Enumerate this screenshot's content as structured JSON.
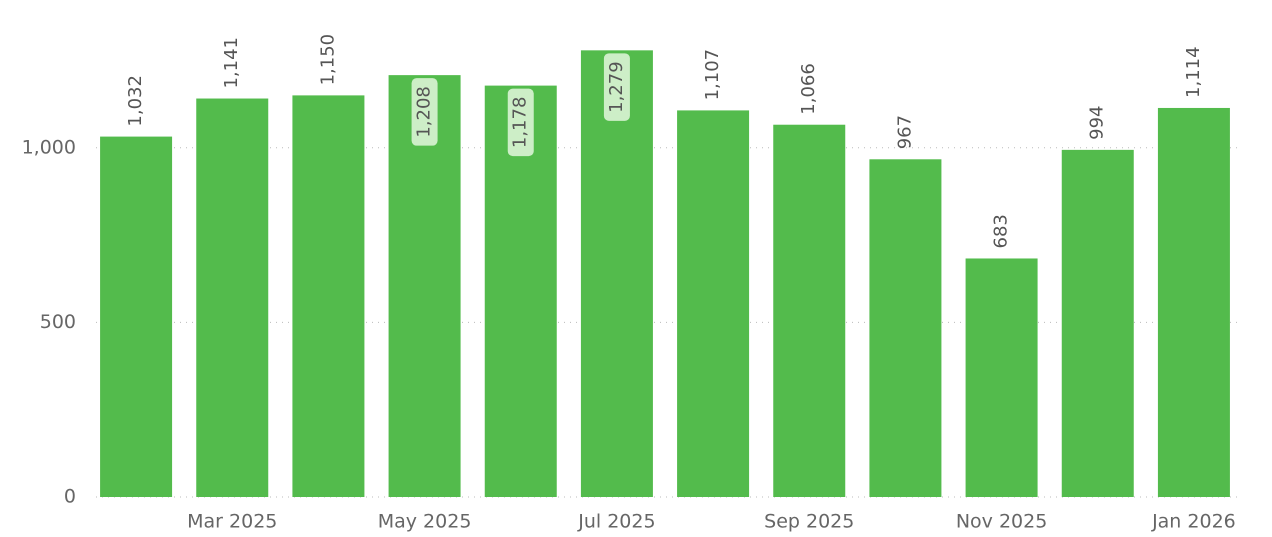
{
  "chart_data": {
    "type": "bar",
    "categories": [
      null,
      "Mar 2025",
      null,
      "May 2025",
      null,
      "Jul 2025",
      null,
      "Sep 2025",
      null,
      "Nov 2025",
      null,
      "Jan 2026"
    ],
    "values": [
      1032,
      1141,
      1150,
      1208,
      1178,
      1279,
      1107,
      1066,
      967,
      683,
      994,
      1114
    ],
    "value_labels": [
      "1,032",
      "1,141",
      "1,150",
      "1,208",
      "1,178",
      "1,279",
      "1,107",
      "1,066",
      "967",
      "683",
      "994",
      "1,114"
    ],
    "color": "#53bb4c",
    "ylim": [
      0,
      1300
    ],
    "yticks": [
      0,
      500,
      {
        "value": 1000,
        "label": "1,000"
      }
    ],
    "grid": true
  }
}
